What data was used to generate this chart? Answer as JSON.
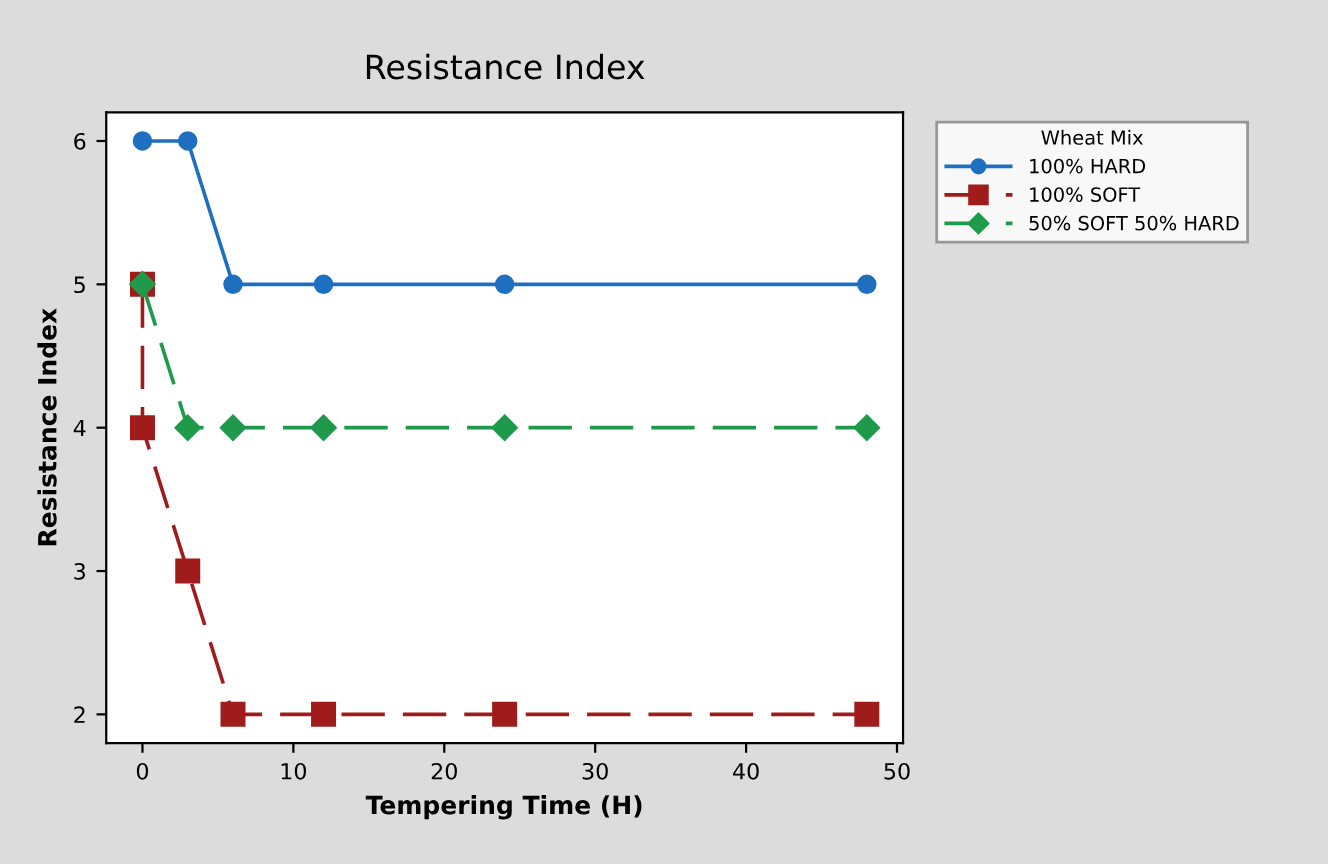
{
  "chart_data": {
    "type": "line",
    "title": "Resistance Index",
    "xlabel": "Tempering Time (H)",
    "ylabel": "Resistance Index",
    "legend_title": "Wheat Mix",
    "legend": "right",
    "series": [
      {
        "name": "100% HARD",
        "color": "#1f6fc0",
        "x": [
          0,
          3,
          6,
          12,
          24,
          48
        ],
        "values": [
          6,
          6,
          5,
          5,
          5,
          5
        ],
        "marker": "circle",
        "line_style": "solid"
      },
      {
        "name": "100% SOFT",
        "color": "#a01c1c",
        "x": [
          0,
          0,
          3,
          6,
          12,
          24,
          48
        ],
        "values": [
          5,
          4,
          3,
          2,
          2,
          2,
          2
        ],
        "marker": "square",
        "line_style": "dashed"
      },
      {
        "name": "50% SOFT 50% HARD",
        "color": "#1e9a4a",
        "x": [
          0,
          3,
          6,
          12,
          24,
          48
        ],
        "values": [
          5,
          4,
          4,
          4,
          4,
          4
        ],
        "marker": "diamond",
        "line_style": "dashed"
      }
    ],
    "xlim": [
      -2.4,
      50.4
    ],
    "xticks": [
      0,
      10,
      20,
      30,
      40,
      50
    ],
    "ylim": [
      1.8,
      6.2
    ],
    "yticks": [
      2,
      3,
      4,
      5,
      6
    ],
    "grid": false
  }
}
